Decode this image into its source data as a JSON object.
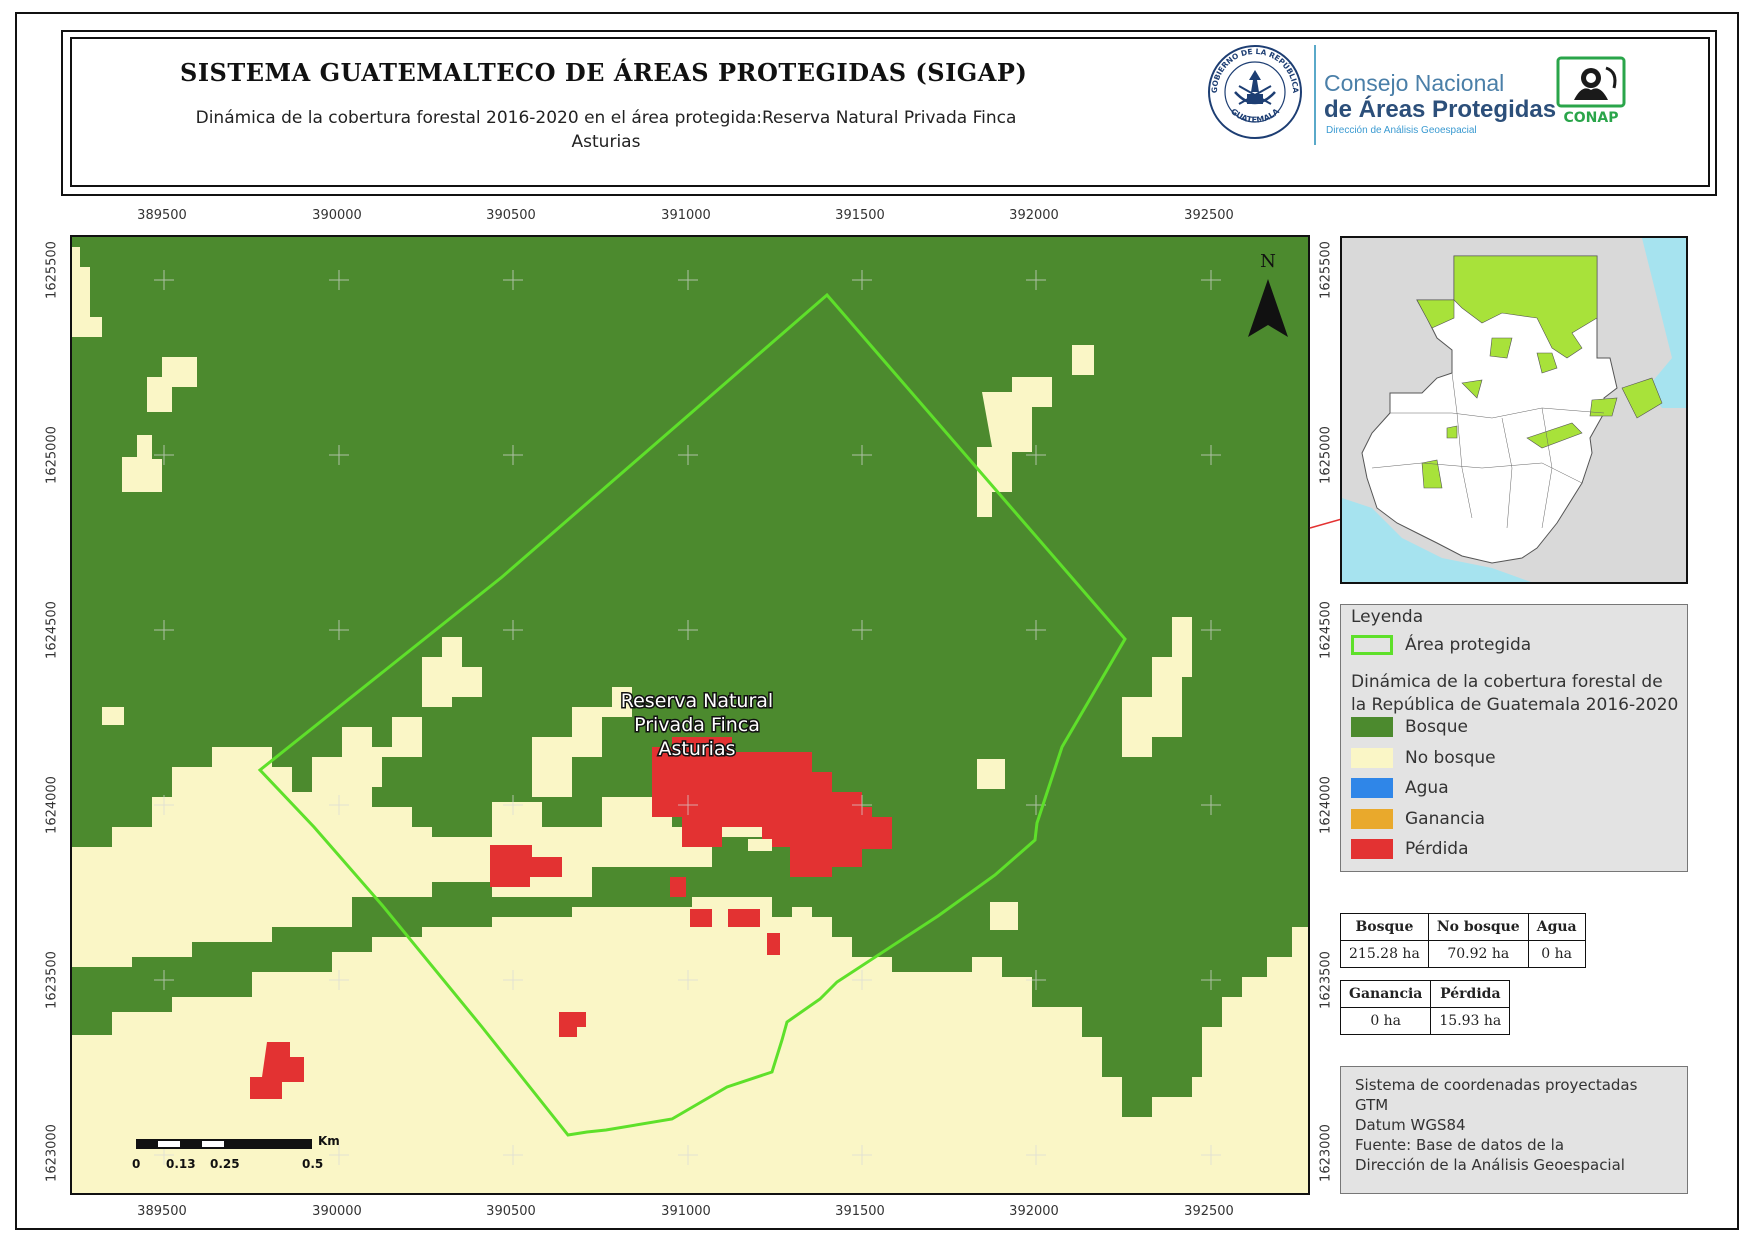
{
  "header": {
    "title": "SISTEMA GUATEMALTECO DE ÁREAS PROTEGIDAS  (SIGAP)",
    "subtitle": "Dinámica de la cobertura forestal 2016-2020 en el área protegida:Reserva Natural Privada Finca Asturias",
    "seal_top_text": "GOBIERNO DE LA REPÚBLICA",
    "seal_bottom_text": "GUATEMALA",
    "org_line1": "Consejo Nacional",
    "org_line2": "de Áreas Protegidas",
    "org_line3": "Dirección de Análisis Geoespacial",
    "conap_logo_text": "CONAP"
  },
  "map": {
    "x_ticks": [
      "389500",
      "390000",
      "390500",
      "391000",
      "391500",
      "392000",
      "392500"
    ],
    "y_ticks": [
      "1625500",
      "1625000",
      "1624500",
      "1624000",
      "1623500",
      "1623000"
    ],
    "area_label_lines": [
      "Reserva Natural",
      "Privada Finca",
      "Asturias"
    ],
    "north_label": "N",
    "scale_unit": "Km",
    "scale_labels": [
      "0",
      "0.13",
      "0.25",
      "0.5"
    ]
  },
  "legend": {
    "title": "Leyenda",
    "area_item": "Área protegida",
    "subtitle": "Dinámica de la cobertura forestal de la República de Guatemala 2016-2020",
    "items": [
      {
        "label": "Bosque",
        "color": "#4c8a2e"
      },
      {
        "label": "No bosque",
        "color": "#faf6c6"
      },
      {
        "label": "Agua",
        "color": "#2f86e8"
      },
      {
        "label": "Ganancia",
        "color": "#e9a92c"
      },
      {
        "label": "Pérdida",
        "color": "#e33232"
      }
    ],
    "area_color": "#5ee02a"
  },
  "stats": {
    "table1": {
      "headers": [
        "Bosque",
        "No bosque",
        "Agua"
      ],
      "values": [
        "215.28 ha",
        "70.92 ha",
        "0 ha"
      ]
    },
    "table2": {
      "headers": [
        "Ganancia",
        "Pérdida"
      ],
      "values": [
        "0 ha",
        "15.93 ha"
      ]
    }
  },
  "info": {
    "lines": [
      "Sistema de coordenadas proyectadas",
      "GTM",
      "Datum WGS84",
      "Fuente: Base de datos de la",
      "Dirección de la Análisis Geoespacial"
    ]
  }
}
